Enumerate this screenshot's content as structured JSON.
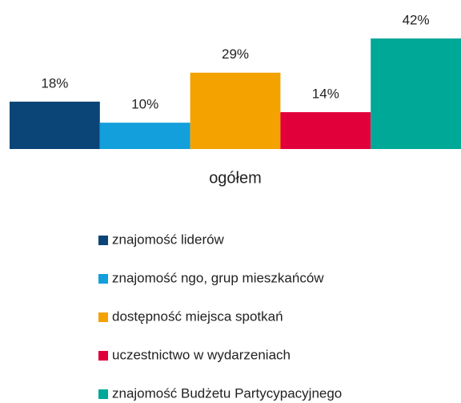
{
  "chart_data": {
    "type": "bar",
    "categories": [
      "ogółem"
    ],
    "series": [
      {
        "name": "znajomość liderów",
        "color": "#0b4577",
        "values": [
          18
        ],
        "value_labels": [
          "18%"
        ]
      },
      {
        "name": "znajomość ngo, grup mieszkańców",
        "color": "#129fdc",
        "values": [
          10
        ],
        "value_labels": [
          "10%"
        ]
      },
      {
        "name": "dostępność miejsca spotkań",
        "color": "#f3a200",
        "values": [
          29
        ],
        "value_labels": [
          "29%"
        ]
      },
      {
        "name": "uczestnictwo w wydarzeniach",
        "color": "#e2003a",
        "values": [
          14
        ],
        "value_labels": [
          "14%"
        ]
      },
      {
        "name": "znajomość Budżetu Partycypacyjnego",
        "color": "#00a898",
        "values": [
          42
        ],
        "value_labels": [
          "42%"
        ]
      }
    ]
  }
}
